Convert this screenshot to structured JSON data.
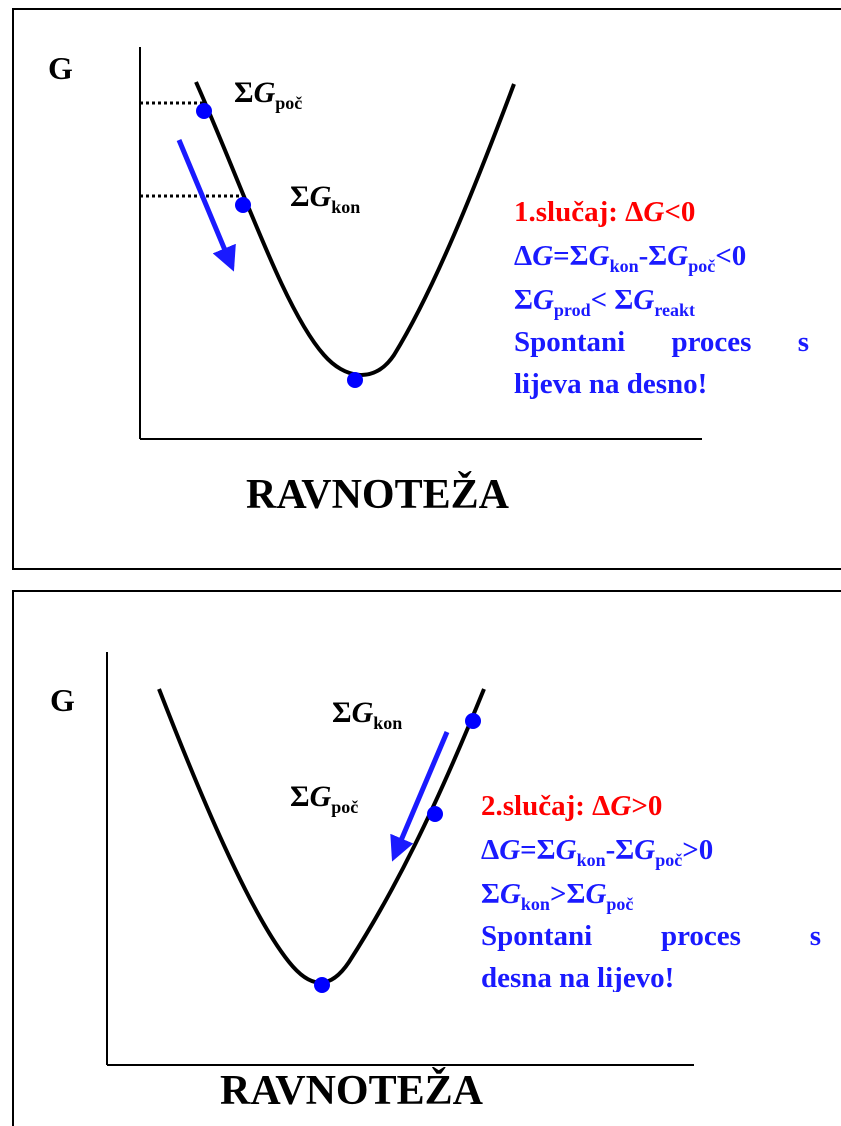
{
  "panel1": {
    "y_axis_label": "G",
    "point_start_label": {
      "sym": "Σ",
      "var": "G",
      "sub": "poč"
    },
    "point_end_label": {
      "sym": "Σ",
      "var": "G",
      "sub": "kon"
    },
    "x_axis_title": "RAVNOTEŽA",
    "case_title": {
      "pre": "1.slučaj: ",
      "delta": "Δ",
      "var": "G",
      "rel": "<0"
    },
    "formula1": {
      "delta": "Δ",
      "var": "G",
      "eq": "=Σ",
      "var2": "G",
      "sub2": "kon",
      "minus": "-Σ",
      "var3": "G",
      "sub3": "poč",
      "rel": "<0"
    },
    "formula2": {
      "sym": "Σ",
      "var": "G",
      "sub": "prod",
      "rel": "< Σ",
      "var2": "G",
      "sub2": "reakt"
    },
    "desc_line1_words": [
      "Spontani",
      "proces",
      "s"
    ],
    "desc_line2": "lijeva na desno!"
  },
  "panel2": {
    "y_axis_label": "G",
    "point_end_label": {
      "sym": "Σ",
      "var": "G",
      "sub": "kon"
    },
    "point_start_label": {
      "sym": "Σ",
      "var": "G",
      "sub": "poč"
    },
    "x_axis_title": "RAVNOTEŽA",
    "case_title": {
      "pre": "2.slučaj: ",
      "delta": "Δ",
      "var": "G",
      "rel": ">0"
    },
    "formula1": {
      "delta": "Δ",
      "var": "G",
      "eq": "=Σ",
      "var2": "G",
      "sub2": "kon",
      "minus": "-Σ",
      "var3": "G",
      "sub3": "poč",
      "rel": ">0"
    },
    "formula2": {
      "sym": "Σ",
      "var": "G",
      "sub": "kon",
      "rel": ">Σ",
      "var2": "G",
      "sub2": "poč"
    },
    "desc_line1_words": [
      "Spontani",
      "proces",
      "s"
    ],
    "desc_line2": "desna na lijevo!"
  },
  "colors": {
    "curve": "#000000",
    "point": "#0000ff",
    "arrow": "#1a1aff",
    "title_red": "#ff0000",
    "text_blue": "#1a1aff"
  }
}
